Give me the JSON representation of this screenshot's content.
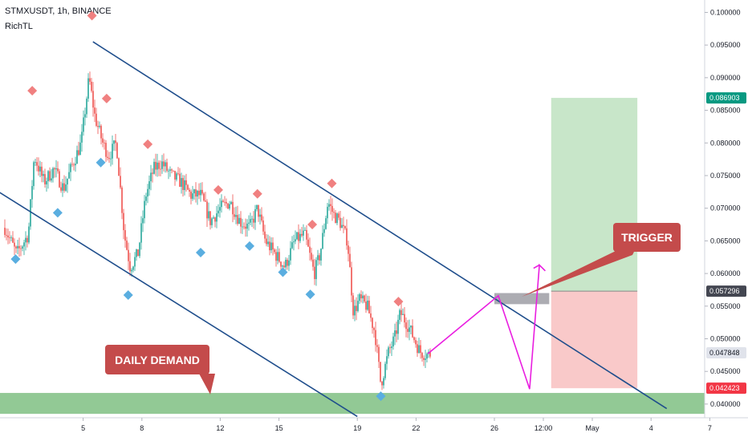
{
  "header": {
    "symbol_line": "STMXUSDT, 1h, BINANCE",
    "indicator": "RichTL"
  },
  "annotations": {
    "daily_demand": "DAILY DEMAND",
    "trigger": "TRIGGER"
  },
  "colors": {
    "up": "#26a69a",
    "down": "#ef5350",
    "channel": "#1f4e8c",
    "projection": "#e91ee0",
    "demand_zone": "#7fbf82",
    "target_zone": "#c8e6c9",
    "stop_zone": "#f9c9c9",
    "pivot_high": "#f08080",
    "pivot_low": "#5aaee0",
    "callout": "#c44b4b"
  },
  "chart_data": {
    "type": "candlestick",
    "x_ticks": [
      {
        "label": "5",
        "t": 5
      },
      {
        "label": "8",
        "t": 8
      },
      {
        "label": "12",
        "t": 12
      },
      {
        "label": "15",
        "t": 15
      },
      {
        "label": "19",
        "t": 19
      },
      {
        "label": "22",
        "t": 22
      },
      {
        "label": "26",
        "t": 26
      },
      {
        "label": "12:00",
        "t": 28.5
      },
      {
        "label": "May",
        "t": 31
      },
      {
        "label": "4",
        "t": 34
      },
      {
        "label": "7",
        "t": 37
      }
    ],
    "ylim": [
      0.0379,
      0.1019
    ],
    "y_ticks": [
      0.1,
      0.095,
      0.09,
      0.085,
      0.08,
      0.075,
      0.07,
      0.065,
      0.06,
      0.055,
      0.05,
      0.045,
      0.04
    ],
    "price_badges": [
      {
        "label": "0.086903",
        "value": 0.086903,
        "color": "#089981"
      },
      {
        "label": "0.057296",
        "value": 0.057296,
        "color": "#434651"
      },
      {
        "label": "0.047848",
        "value": 0.047848,
        "color": "#e0e3eb"
      },
      {
        "label": "0.042423",
        "value": 0.042423,
        "color": "#f23645"
      }
    ],
    "price_path": [
      [
        1.0,
        0.067
      ],
      [
        1.6,
        0.063
      ],
      [
        2.2,
        0.066
      ],
      [
        2.5,
        0.078
      ],
      [
        3.0,
        0.074
      ],
      [
        3.5,
        0.076
      ],
      [
        4.0,
        0.073
      ],
      [
        4.5,
        0.077
      ],
      [
        4.9,
        0.08
      ],
      [
        5.3,
        0.09
      ],
      [
        5.6,
        0.084
      ],
      [
        6.0,
        0.08
      ],
      [
        6.3,
        0.078
      ],
      [
        6.7,
        0.08
      ],
      [
        7.1,
        0.066
      ],
      [
        7.4,
        0.061
      ],
      [
        7.8,
        0.063
      ],
      [
        8.2,
        0.072
      ],
      [
        8.6,
        0.076
      ],
      [
        9.0,
        0.077
      ],
      [
        9.5,
        0.075
      ],
      [
        10.0,
        0.074
      ],
      [
        10.5,
        0.072
      ],
      [
        11.0,
        0.072
      ],
      [
        11.5,
        0.068
      ],
      [
        12.0,
        0.07
      ],
      [
        12.5,
        0.071
      ],
      [
        13.0,
        0.068
      ],
      [
        13.5,
        0.067
      ],
      [
        13.9,
        0.07
      ],
      [
        14.3,
        0.065
      ],
      [
        14.8,
        0.063
      ],
      [
        15.3,
        0.061
      ],
      [
        15.8,
        0.065
      ],
      [
        16.3,
        0.066
      ],
      [
        16.8,
        0.06
      ],
      [
        17.1,
        0.063
      ],
      [
        17.5,
        0.071
      ],
      [
        17.8,
        0.069
      ],
      [
        18.1,
        0.068
      ],
      [
        18.5,
        0.065
      ],
      [
        18.8,
        0.054
      ],
      [
        19.1,
        0.056
      ],
      [
        19.5,
        0.055
      ],
      [
        19.9,
        0.051
      ],
      [
        20.2,
        0.043
      ],
      [
        20.6,
        0.048
      ],
      [
        20.9,
        0.05
      ],
      [
        21.2,
        0.054
      ],
      [
        21.6,
        0.052
      ],
      [
        21.9,
        0.05
      ],
      [
        22.2,
        0.048
      ],
      [
        22.6,
        0.0475
      ],
      [
        22.8,
        0.0478
      ]
    ],
    "pivot_highs": [
      {
        "t": 2.4,
        "v": 0.088
      },
      {
        "t": 5.45,
        "v": 0.0995
      },
      {
        "t": 6.2,
        "v": 0.0868
      },
      {
        "t": 8.3,
        "v": 0.0798
      },
      {
        "t": 11.9,
        "v": 0.0728
      },
      {
        "t": 13.9,
        "v": 0.0722
      },
      {
        "t": 16.7,
        "v": 0.0675
      },
      {
        "t": 17.7,
        "v": 0.0738
      },
      {
        "t": 21.1,
        "v": 0.0557
      }
    ],
    "pivot_lows": [
      {
        "t": 1.55,
        "v": 0.0622
      },
      {
        "t": 3.7,
        "v": 0.0693
      },
      {
        "t": 5.9,
        "v": 0.077
      },
      {
        "t": 7.3,
        "v": 0.0567
      },
      {
        "t": 11.0,
        "v": 0.0632
      },
      {
        "t": 13.5,
        "v": 0.0642
      },
      {
        "t": 15.2,
        "v": 0.0602
      },
      {
        "t": 16.6,
        "v": 0.0568
      },
      {
        "t": 20.2,
        "v": 0.0412
      }
    ],
    "channel_upper": [
      [
        5.5,
        0.0955
      ],
      [
        34.8,
        0.0393
      ]
    ],
    "channel_lower": [
      [
        0.0,
        0.0738
      ],
      [
        19.0,
        0.0381
      ]
    ],
    "demand_zone": [
      0.0385,
      0.0417
    ],
    "projection_path": [
      [
        22.6,
        0.0477
      ],
      [
        26.2,
        0.0566
      ],
      [
        27.8,
        0.0423
      ],
      [
        28.3,
        0.0613
      ],
      [
        28.6,
        0.0604
      ]
    ],
    "projection_arrow_stub": [
      [
        28.0,
        0.0608
      ],
      [
        28.3,
        0.0613
      ]
    ],
    "trigger_box": {
      "t0": 26.0,
      "t1": 28.8,
      "v0": 0.0553,
      "v1": 0.057
    },
    "target_zone": {
      "t0": 28.9,
      "t1": 33.3,
      "v0": 0.057296,
      "v1": 0.086903
    },
    "stop_zone": {
      "t0": 28.9,
      "t1": 33.3,
      "v0": 0.042423,
      "v1": 0.057296
    }
  }
}
